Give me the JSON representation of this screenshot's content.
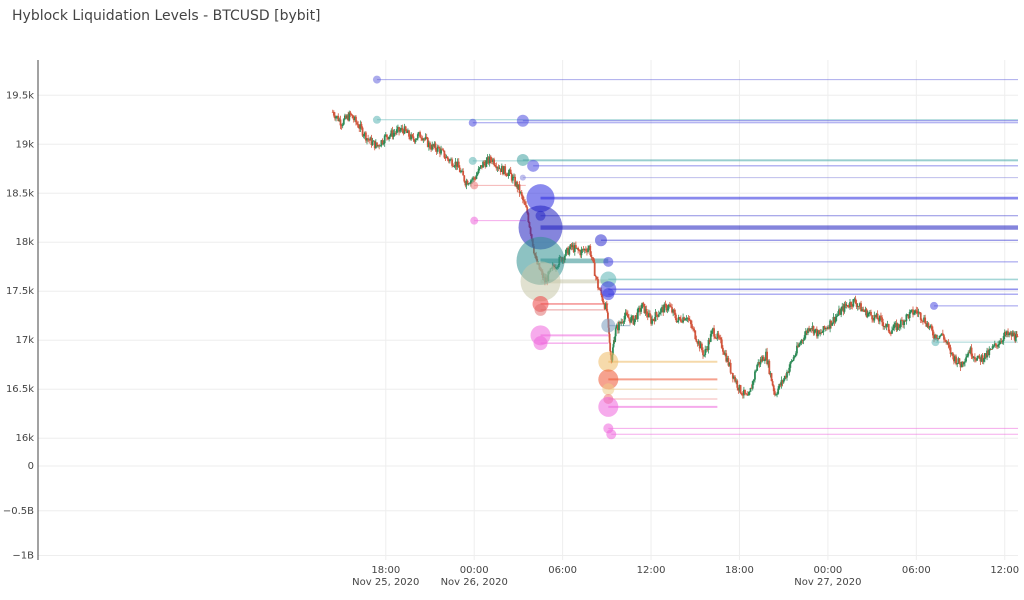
{
  "title": "Hyblock Liquidation Levels - BTCUSD [bybit]",
  "colors": {
    "up": "#2e8b57",
    "down": "#d2553c",
    "grid": "#eeeeee",
    "axis": "#444444"
  },
  "chart_data": {
    "type": "candlestick_with_liquidation_levels",
    "title": "Hyblock Liquidation Levels - BTCUSD [bybit]",
    "xlabel": "",
    "ylabel": "",
    "grid": true,
    "x_range_hours": [
      -5.6,
      60.9
    ],
    "y_range": [
      -1.05,
      19.86
    ],
    "x_ticks": [
      {
        "hour": 18,
        "label": "18:00",
        "date": "Nov 25, 2020"
      },
      {
        "hour": 24,
        "label": "00:00",
        "date": "Nov 26, 2020"
      },
      {
        "hour": 30,
        "label": "06:00",
        "date": ""
      },
      {
        "hour": 36,
        "label": "12:00",
        "date": ""
      },
      {
        "hour": 42,
        "label": "18:00",
        "date": ""
      },
      {
        "hour": 48,
        "label": "00:00",
        "date": "Nov 27, 2020"
      },
      {
        "hour": 54,
        "label": "06:00",
        "date": ""
      },
      {
        "hour": 60,
        "label": "12:00",
        "date": ""
      }
    ],
    "y_ticks": [
      {
        "value": 19.5,
        "label": "19.5k"
      },
      {
        "value": 19.0,
        "label": "19k"
      },
      {
        "value": 18.5,
        "label": "18.5k"
      },
      {
        "value": 18.0,
        "label": "18k"
      },
      {
        "value": 17.5,
        "label": "17.5k"
      },
      {
        "value": 17.0,
        "label": "17k"
      },
      {
        "value": 16.5,
        "label": "16.5k"
      },
      {
        "value": 16.0,
        "label": "16k"
      },
      {
        "value": 0,
        "label": "0"
      },
      {
        "value": -0.5,
        "label": "−0.5B"
      },
      {
        "value": -1.0,
        "label": "−1B"
      }
    ],
    "price_path": [
      [
        14.4,
        19.33
      ],
      [
        15.0,
        19.22
      ],
      [
        15.6,
        19.3
      ],
      [
        16.2,
        19.18
      ],
      [
        16.8,
        19.05
      ],
      [
        17.4,
        18.98
      ],
      [
        18.0,
        19.08
      ],
      [
        18.6,
        19.12
      ],
      [
        19.2,
        19.15
      ],
      [
        19.8,
        19.05
      ],
      [
        20.4,
        19.1
      ],
      [
        21.0,
        18.98
      ],
      [
        21.6,
        18.95
      ],
      [
        22.2,
        18.85
      ],
      [
        22.8,
        18.8
      ],
      [
        23.4,
        18.62
      ],
      [
        24.0,
        18.65
      ],
      [
        24.6,
        18.8
      ],
      [
        25.2,
        18.85
      ],
      [
        25.8,
        18.75
      ],
      [
        26.4,
        18.7
      ],
      [
        27.0,
        18.55
      ],
      [
        27.6,
        18.3
      ],
      [
        28.2,
        17.8
      ],
      [
        28.8,
        17.6
      ],
      [
        29.4,
        17.75
      ],
      [
        30.0,
        17.85
      ],
      [
        30.6,
        17.95
      ],
      [
        31.2,
        17.9
      ],
      [
        31.8,
        17.95
      ],
      [
        32.4,
        17.55
      ],
      [
        33.0,
        17.3
      ],
      [
        33.3,
        16.8
      ],
      [
        33.6,
        17.1
      ],
      [
        34.2,
        17.25
      ],
      [
        34.8,
        17.2
      ],
      [
        35.4,
        17.35
      ],
      [
        36.0,
        17.2
      ],
      [
        36.6,
        17.3
      ],
      [
        37.2,
        17.35
      ],
      [
        37.8,
        17.2
      ],
      [
        38.4,
        17.25
      ],
      [
        39.0,
        17.05
      ],
      [
        39.6,
        16.85
      ],
      [
        40.2,
        17.1
      ],
      [
        40.8,
        16.95
      ],
      [
        41.4,
        16.7
      ],
      [
        42.0,
        16.5
      ],
      [
        42.6,
        16.4
      ],
      [
        43.2,
        16.75
      ],
      [
        43.8,
        16.85
      ],
      [
        44.4,
        16.45
      ],
      [
        45.0,
        16.6
      ],
      [
        45.6,
        16.8
      ],
      [
        46.2,
        17.0
      ],
      [
        46.8,
        17.15
      ],
      [
        47.4,
        17.05
      ],
      [
        48.0,
        17.15
      ],
      [
        48.6,
        17.25
      ],
      [
        49.2,
        17.35
      ],
      [
        49.8,
        17.4
      ],
      [
        50.4,
        17.3
      ],
      [
        51.0,
        17.25
      ],
      [
        51.6,
        17.2
      ],
      [
        52.2,
        17.1
      ],
      [
        52.8,
        17.15
      ],
      [
        53.4,
        17.25
      ],
      [
        54.0,
        17.3
      ],
      [
        54.6,
        17.2
      ],
      [
        55.2,
        17.05
      ],
      [
        55.8,
        17.05
      ],
      [
        56.4,
        16.85
      ],
      [
        57.0,
        16.75
      ],
      [
        57.6,
        16.9
      ],
      [
        58.2,
        16.8
      ],
      [
        58.8,
        16.85
      ],
      [
        59.4,
        16.95
      ],
      [
        60.0,
        17.05
      ],
      [
        60.6,
        17.05
      ],
      [
        60.9,
        17.0
      ]
    ],
    "liquidation_levels": [
      {
        "price": 19.66,
        "start": 17.4,
        "end": 60.9,
        "color": "#6666dd",
        "size": 4
      },
      {
        "price": 19.25,
        "start": 17.4,
        "end": 60.9,
        "color": "#5bb5b5",
        "size": 4
      },
      {
        "price": 19.22,
        "start": 23.9,
        "end": 60.9,
        "color": "#4d4de0",
        "size": 4
      },
      {
        "price": 19.24,
        "start": 27.3,
        "end": 60.9,
        "color": "#4d4de0",
        "size": 6
      },
      {
        "price": 18.83,
        "start": 23.9,
        "end": 60.9,
        "color": "#5bb5b5",
        "size": 4
      },
      {
        "price": 18.84,
        "start": 27.3,
        "end": 60.9,
        "color": "#40a0a0",
        "size": 6
      },
      {
        "price": 18.78,
        "start": 28.0,
        "end": 60.9,
        "color": "#4d4de0",
        "size": 6
      },
      {
        "price": 18.66,
        "start": 27.3,
        "end": 60.9,
        "color": "#8888dd",
        "size": 3
      },
      {
        "price": 18.58,
        "start": 24.0,
        "end": 27.5,
        "color": "#ee7777",
        "size": 4
      },
      {
        "price": 18.45,
        "start": 28.5,
        "end": 60.9,
        "color": "#2a2ae0",
        "size": 14
      },
      {
        "price": 18.22,
        "start": 24.0,
        "end": 27.5,
        "color": "#ee66dd",
        "size": 4
      },
      {
        "price": 18.27,
        "start": 28.5,
        "end": 60.9,
        "color": "#3333cc",
        "size": 5
      },
      {
        "price": 18.15,
        "start": 28.5,
        "end": 60.9,
        "color": "#2020c0",
        "size": 22
      },
      {
        "price": 18.02,
        "start": 32.6,
        "end": 60.9,
        "color": "#3030d0",
        "size": 6
      },
      {
        "price": 17.81,
        "start": 28.5,
        "end": 33.1,
        "color": "#2f8f8f",
        "size": 24
      },
      {
        "price": 17.8,
        "start": 33.1,
        "end": 60.9,
        "color": "#4444dd",
        "size": 5
      },
      {
        "price": 17.62,
        "start": 33.1,
        "end": 60.9,
        "color": "#5bb5b5",
        "size": 8
      },
      {
        "price": 17.6,
        "start": 28.5,
        "end": 33.1,
        "color": "#c8c8aa",
        "size": 20
      },
      {
        "price": 17.52,
        "start": 33.1,
        "end": 60.9,
        "color": "#3a3ae0",
        "size": 8
      },
      {
        "price": 17.47,
        "start": 33.1,
        "end": 60.9,
        "color": "#3a3ae0",
        "size": 6
      },
      {
        "price": 17.37,
        "start": 28.5,
        "end": 33.1,
        "color": "#ee4444",
        "size": 8
      },
      {
        "price": 17.35,
        "start": 55.2,
        "end": 60.9,
        "color": "#4d4de0",
        "size": 4
      },
      {
        "price": 17.31,
        "start": 28.5,
        "end": 33.1,
        "color": "#e07070",
        "size": 6
      },
      {
        "price": 17.15,
        "start": 33.1,
        "end": 34.6,
        "color": "#7799bb",
        "size": 7
      },
      {
        "price": 17.05,
        "start": 28.5,
        "end": 33.1,
        "color": "#ee66dd",
        "size": 10
      },
      {
        "price": 16.97,
        "start": 28.5,
        "end": 33.1,
        "color": "#ee66dd",
        "size": 7
      },
      {
        "price": 16.98,
        "start": 55.3,
        "end": 60.9,
        "color": "#5bb5b5",
        "size": 4
      },
      {
        "price": 16.78,
        "start": 33.1,
        "end": 40.5,
        "color": "#eebb66",
        "size": 10
      },
      {
        "price": 16.6,
        "start": 33.1,
        "end": 40.5,
        "color": "#ee5533",
        "size": 10
      },
      {
        "price": 16.5,
        "start": 33.1,
        "end": 40.5,
        "color": "#eecc88",
        "size": 6
      },
      {
        "price": 16.4,
        "start": 33.1,
        "end": 40.5,
        "color": "#ee7777",
        "size": 5
      },
      {
        "price": 16.32,
        "start": 33.1,
        "end": 40.5,
        "color": "#ee66dd",
        "size": 10
      },
      {
        "price": 16.1,
        "start": 33.1,
        "end": 60.9,
        "color": "#ee66dd",
        "size": 5
      },
      {
        "price": 16.04,
        "start": 33.3,
        "end": 60.9,
        "color": "#ee66dd",
        "size": 5
      }
    ]
  }
}
